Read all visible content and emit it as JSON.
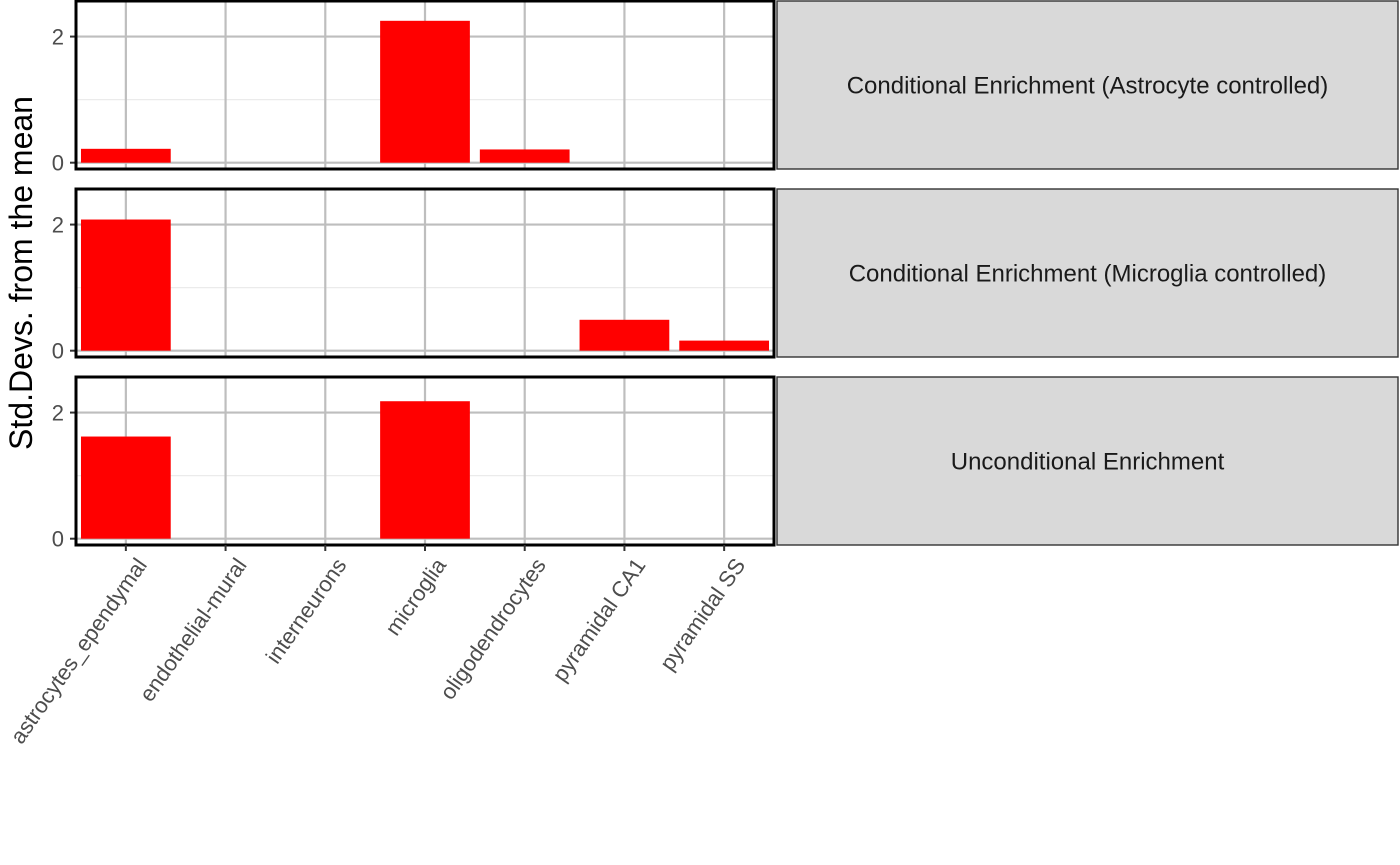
{
  "chart_data": {
    "type": "bar",
    "ylabel": "Std.Devs. from the mean",
    "xlabel": "",
    "categories": [
      "astrocytes_ependymal",
      "endothelial-mural",
      "interneurons",
      "microglia",
      "oligodendrocytes",
      "pyramidal CA1",
      "pyramidal SS"
    ],
    "ylim": [
      -0.1,
      2.58
    ],
    "yticks": [
      0,
      2
    ],
    "grid": true,
    "bar_color": "#ff0000",
    "panels": [
      {
        "label": "Conditional Enrichment (Astrocyte controlled)",
        "values": [
          0.22,
          0,
          0,
          2.25,
          0.21,
          0,
          0
        ]
      },
      {
        "label": "Conditional Enrichment (Microglia controlled)",
        "values": [
          2.08,
          0,
          0,
          0,
          0,
          0.49,
          0.16
        ]
      },
      {
        "label": "Unconditional Enrichment",
        "values": [
          1.62,
          0,
          0,
          2.18,
          0,
          0,
          0
        ]
      }
    ]
  }
}
